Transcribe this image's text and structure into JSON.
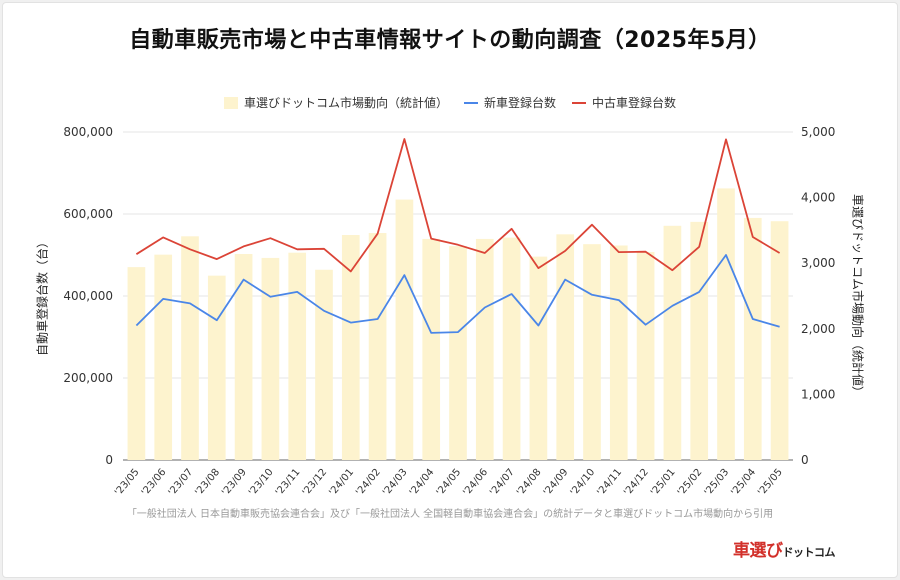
{
  "title": "自動車販売市場と中古車情報サイトの動向調査（2025年5月）",
  "source": "「一般社団法人 日本自動車販売協会連合会」及び「一般社団法人 全国軽自動車協会連合会」の統計データと車選びドットコム市場動向から引用",
  "logo": {
    "main": "車選び",
    "sub": "ドットコム"
  },
  "chart_data": {
    "type": "bar",
    "categories": [
      "'23/05",
      "'23/06",
      "'23/07",
      "'23/08",
      "'23/09",
      "'23/10",
      "'23/11",
      "'23/12",
      "'24/01",
      "'24/02",
      "'24/03",
      "'24/04",
      "'24/05",
      "'24/06",
      "'24/07",
      "'24/08",
      "'24/09",
      "'24/10",
      "'24/11",
      "'24/12",
      "'25/01",
      "'25/02",
      "'25/03",
      "'25/04",
      "'25/05"
    ],
    "series": [
      {
        "name": "車選びドットコム市場動向（統計値）",
        "type": "bar",
        "axis": "right",
        "color": "#fdf3ce",
        "values": [
          2940,
          3130,
          3410,
          2810,
          3140,
          3080,
          3160,
          2900,
          3430,
          3460,
          3970,
          3370,
          3260,
          3370,
          3390,
          3100,
          3440,
          3290,
          3270,
          3170,
          3570,
          3630,
          4140,
          3690,
          3640
        ]
      },
      {
        "name": "新車登録台数",
        "type": "line",
        "axis": "left",
        "color": "#4a86e8",
        "values": [
          328000,
          393000,
          382000,
          341000,
          440000,
          398000,
          410000,
          364000,
          335000,
          344000,
          451000,
          310000,
          312000,
          372000,
          405000,
          328000,
          440000,
          403000,
          390000,
          330000,
          376000,
          410000,
          500000,
          344000,
          325000
        ]
      },
      {
        "name": "中古車登録台数",
        "type": "line",
        "axis": "left",
        "color": "#db4437",
        "values": [
          502000,
          543000,
          514000,
          490000,
          521000,
          541000,
          514000,
          515000,
          460000,
          552000,
          783000,
          540000,
          525000,
          505000,
          564000,
          468000,
          510000,
          574000,
          507000,
          508000,
          463000,
          520000,
          782000,
          544000,
          505000
        ]
      }
    ],
    "ylabel": "自動車登録台数（台）",
    "ylabel_right": "車選びドットコム市場動向（統計値）",
    "ylim": [
      0,
      800000
    ],
    "ylim_right": [
      0,
      5000
    ],
    "yticks": [
      "0",
      "200,000",
      "400,000",
      "600,000",
      "800,000"
    ],
    "yticks_right": [
      "0",
      "1,000",
      "2,000",
      "3,000",
      "4,000",
      "5,000"
    ],
    "grid": true,
    "legend_position": "top"
  }
}
